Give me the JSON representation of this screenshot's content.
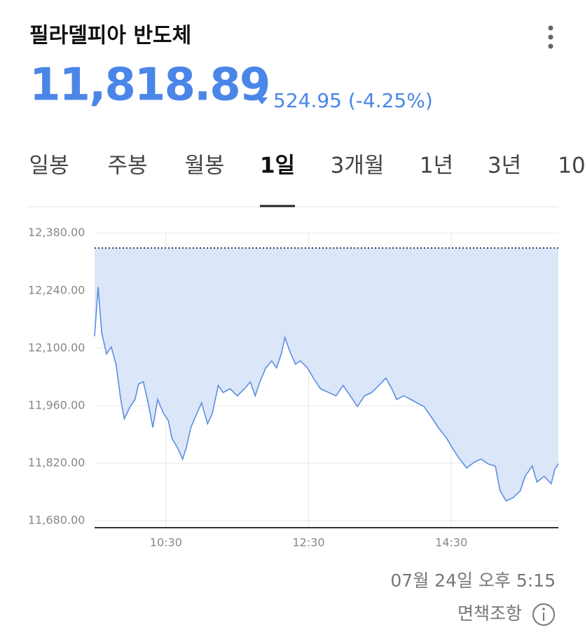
{
  "header": {
    "title": "필라델피아 반도체",
    "price": "11,818.89",
    "change": "524.95 (-4.25%)"
  },
  "tabs": [
    "일봉",
    "주봉",
    "월봉",
    "1일",
    "3개월",
    "1년",
    "3년",
    "10"
  ],
  "active_tab": 3,
  "chart_data": {
    "type": "line",
    "x": [
      570,
      573,
      576,
      580,
      584,
      588,
      592,
      595,
      600,
      604,
      607,
      611,
      615,
      619,
      623,
      628,
      632,
      635,
      640,
      644,
      647,
      651,
      656,
      660,
      665,
      669,
      674,
      678,
      684,
      690,
      696,
      701,
      705,
      709,
      714,
      719,
      723,
      727,
      730,
      735,
      739,
      743,
      749,
      754,
      760,
      767,
      773,
      779,
      785,
      791,
      797,
      803,
      809,
      815,
      820,
      824,
      830,
      836,
      841,
      847,
      853,
      859,
      866,
      871,
      877,
      883,
      889,
      895,
      901,
      907,
      911,
      916,
      922,
      928,
      932,
      938,
      942,
      948,
      954,
      957,
      960
    ],
    "series": [
      {
        "name": "필라델피아 반도체",
        "color": "#5b8ee0",
        "fill": "#dbe6f8",
        "values": [
          12129,
          12249,
          12138,
          12086,
          12103,
          12061,
          11975,
          11928,
          11958,
          11975,
          12013,
          12018,
          11967,
          11907,
          11975,
          11941,
          11924,
          11881,
          11856,
          11830,
          11856,
          11907,
          11941,
          11967,
          11916,
          11941,
          12009,
          11992,
          12001,
          11984,
          12001,
          12018,
          11984,
          12018,
          12052,
          12069,
          12052,
          12086,
          12126,
          12086,
          12061,
          12069,
          12052,
          12027,
          12001,
          11992,
          11984,
          12009,
          11984,
          11958,
          11984,
          11992,
          12009,
          12027,
          12001,
          11975,
          11984,
          11975,
          11967,
          11958,
          11933,
          11907,
          11881,
          11856,
          11830,
          11808,
          11822,
          11830,
          11818,
          11813,
          11753,
          11728,
          11736,
          11753,
          11788,
          11813,
          11774,
          11788,
          11770,
          11805,
          11818.89
        ]
      }
    ],
    "reference_line": 12343.84,
    "xlim": [
      570,
      960
    ],
    "xticks": [
      {
        "value": 630,
        "label": "10:30"
      },
      {
        "value": 750,
        "label": "12:30"
      },
      {
        "value": 870,
        "label": "14:30"
      }
    ],
    "ylim": [
      11663,
      12400
    ],
    "yticks": [
      {
        "value": 11680,
        "label": "11,680.00"
      },
      {
        "value": 11820,
        "label": "11,820.00"
      },
      {
        "value": 11960,
        "label": "11,960.00"
      },
      {
        "value": 12100,
        "label": "12,100.00"
      },
      {
        "value": 12240,
        "label": "12,240.00"
      },
      {
        "value": 12380,
        "label": "12,380.00"
      }
    ],
    "grid": true
  },
  "footer": {
    "timestamp": "07월 24일 오후 5:15",
    "disclaimer": "면책조항"
  }
}
